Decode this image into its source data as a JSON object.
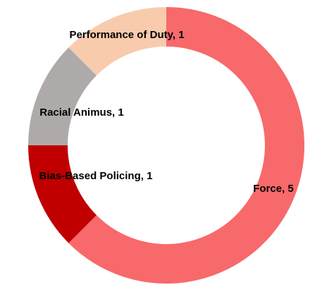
{
  "chart_data": {
    "type": "donut",
    "values": [
      5,
      1,
      1,
      1
    ],
    "value_labels": [
      "Force, 5",
      "Bias-Based Policing, 1",
      "Racial Animus, 1",
      "Performance of Duty, 1"
    ],
    "colors": [
      "#f8696b",
      "#c00000",
      "#aeaaaa",
      "#f8cbad"
    ]
  }
}
